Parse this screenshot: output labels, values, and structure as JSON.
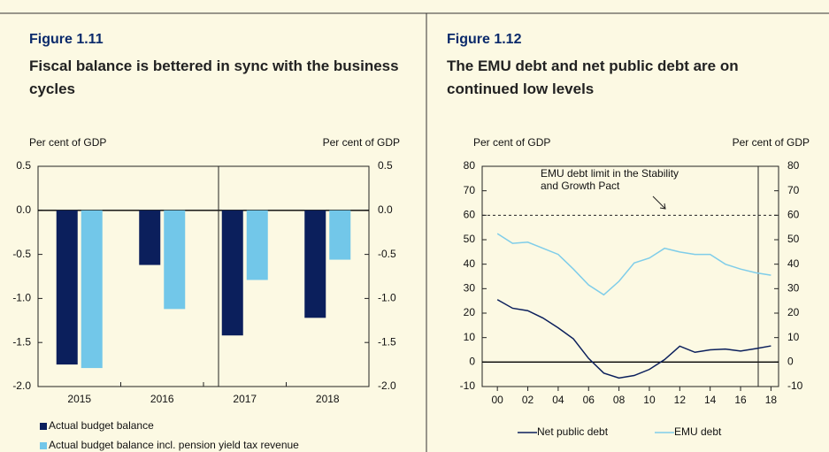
{
  "chart_data": [
    {
      "type": "bar",
      "figure": "Figure 1.11",
      "title": "Fiscal balance is bettered in sync with the business cycles",
      "y_label": "Per cent of GDP",
      "y2_label": "Per cent of GDP",
      "categories": [
        "2015",
        "2016",
        "2017",
        "2018"
      ],
      "series": [
        {
          "name": "Actual budget balance",
          "color": "#0b1f5c",
          "values": [
            -1.75,
            -0.62,
            -1.42,
            -1.22
          ]
        },
        {
          "name": "Actual budget balance incl. pension yield tax revenue",
          "color": "#72c7e9",
          "values": [
            -1.79,
            -1.12,
            -0.79,
            -0.56
          ]
        }
      ],
      "ylim": [
        -2,
        0.5
      ],
      "yticks": [
        0.5,
        {
          "value": 0,
          "label": "0.0"
        },
        -0.5,
        {
          "value": -1,
          "label": "-1.0"
        },
        -1.5,
        {
          "value": -2,
          "label": "-2.0"
        }
      ],
      "y2lim": [
        -2,
        0.5
      ],
      "y2ticks": [
        0.5,
        {
          "value": 0,
          "label": "0.0"
        },
        -0.5,
        {
          "value": -1,
          "label": "-1.0"
        },
        -1.5,
        {
          "value": -2,
          "label": "-2.0"
        }
      ]
    },
    {
      "type": "line",
      "figure": "Figure 1.12",
      "title": "The EMU debt and net public debt are on continued low levels",
      "y_label": "Per cent of GDP",
      "y2_label": "Per cent of GDP",
      "x": [
        2000,
        2001,
        2002,
        2003,
        2004,
        2005,
        2006,
        2007,
        2008,
        2009,
        2010,
        2011,
        2012,
        2013,
        2014,
        2015,
        2016,
        2017,
        2018
      ],
      "series": [
        {
          "name": "Net public debt",
          "color": "#0b1f5c",
          "values": [
            25.5,
            22,
            21,
            18,
            14,
            9.5,
            1.5,
            -4.5,
            -6.5,
            -5.5,
            -3,
            1,
            6.5,
            4,
            5,
            5.3,
            4.5,
            5.5,
            6.6
          ]
        },
        {
          "name": "EMU debt",
          "color": "#7fcde9",
          "values": [
            52.5,
            48.5,
            49,
            46.5,
            44,
            38,
            31.5,
            27.5,
            33,
            40.5,
            42.5,
            46.5,
            45,
            44,
            44,
            40,
            38,
            36.5,
            35.5
          ]
        }
      ],
      "reference_line": {
        "value": 60,
        "label_lines": [
          "EMU debt limit in the Stability",
          "and Growth Pact"
        ]
      },
      "xlim": [
        1999,
        2018.5
      ],
      "xticks": [
        {
          "value": 2000,
          "label": "00"
        },
        {
          "value": 2002,
          "label": "02"
        },
        {
          "value": 2004,
          "label": "04"
        },
        {
          "value": 2006,
          "label": "06"
        },
        {
          "value": 2008,
          "label": "08"
        },
        {
          "value": 2010,
          "label": "10"
        },
        {
          "value": 2012,
          "label": "12"
        },
        {
          "value": 2014,
          "label": "14"
        },
        {
          "value": 2016,
          "label": "16"
        },
        {
          "value": 2018,
          "label": "18"
        }
      ],
      "ylim": [
        -10,
        80
      ],
      "yticks": [
        -10,
        0,
        10,
        20,
        30,
        40,
        50,
        60,
        70,
        80
      ],
      "y2lim": [
        -10,
        80
      ],
      "y2ticks": [
        -10,
        0,
        10,
        20,
        30,
        40,
        50,
        60,
        70,
        80
      ]
    }
  ]
}
